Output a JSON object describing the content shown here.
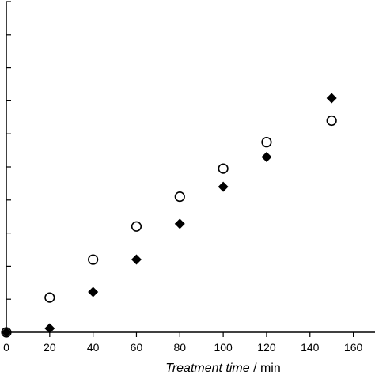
{
  "chart_data": {
    "type": "scatter",
    "xlabel_italic": "Treatment time",
    "xlabel_unit": " / min",
    "ylabel": "",
    "xlim": [
      0,
      170
    ],
    "ylim": [
      0,
      10
    ],
    "x_ticks": [
      0,
      20,
      40,
      60,
      80,
      100,
      120,
      140,
      160
    ],
    "y_ticks": [
      0,
      1,
      2,
      3,
      4,
      5,
      6,
      7,
      8,
      9,
      10
    ],
    "grid": false,
    "series": [
      {
        "marker": "open-circle",
        "x": [
          0,
          20,
          40,
          60,
          80,
          100,
          120,
          150
        ],
        "y": [
          0,
          1.05,
          2.2,
          3.2,
          4.1,
          4.95,
          5.75,
          6.4
        ]
      },
      {
        "marker": "filled-diamond",
        "x": [
          0,
          20,
          40,
          60,
          80,
          100,
          120,
          150
        ],
        "y": [
          0,
          0.12,
          1.22,
          2.2,
          3.28,
          4.4,
          5.3,
          7.08
        ]
      }
    ]
  }
}
